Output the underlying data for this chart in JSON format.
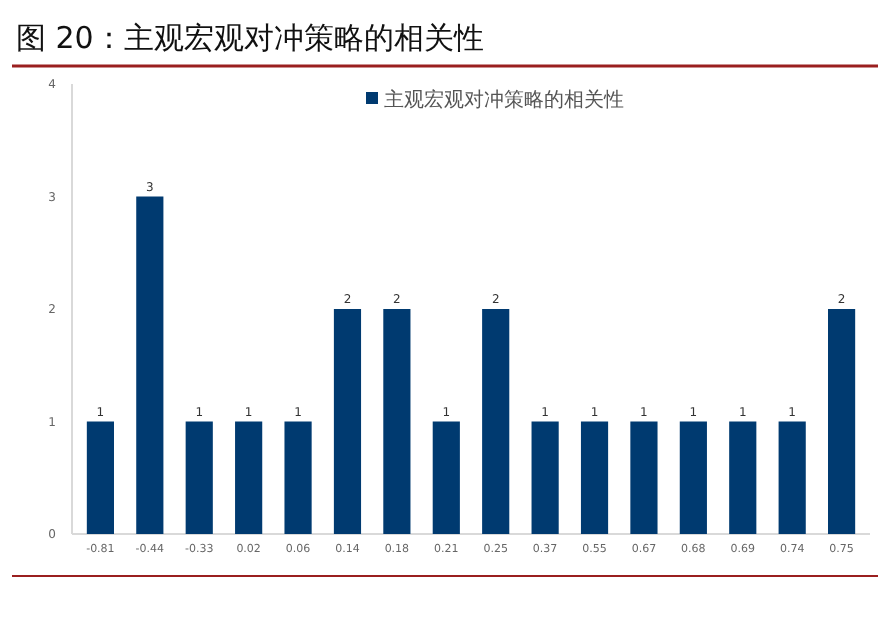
{
  "chart_data": {
    "type": "bar",
    "title": "图 20：主观宏观对冲策略的相关性",
    "categories": [
      "-0.81",
      "-0.44",
      "-0.33",
      "0.02",
      "0.06",
      "0.14",
      "0.18",
      "0.21",
      "0.25",
      "0.37",
      "0.55",
      "0.67",
      "0.68",
      "0.69",
      "0.74",
      "0.75"
    ],
    "series": [
      {
        "name": "主观宏观对冲策略的相关性",
        "color": "#003a70",
        "values": [
          1,
          3,
          1,
          1,
          1,
          2,
          2,
          1,
          2,
          1,
          1,
          1,
          1,
          1,
          1,
          2
        ]
      }
    ],
    "ylim": [
      0,
      4
    ],
    "yticks": [
      0,
      1,
      2,
      3,
      4
    ],
    "data_labels": true,
    "legend": "top",
    "grid": false
  }
}
